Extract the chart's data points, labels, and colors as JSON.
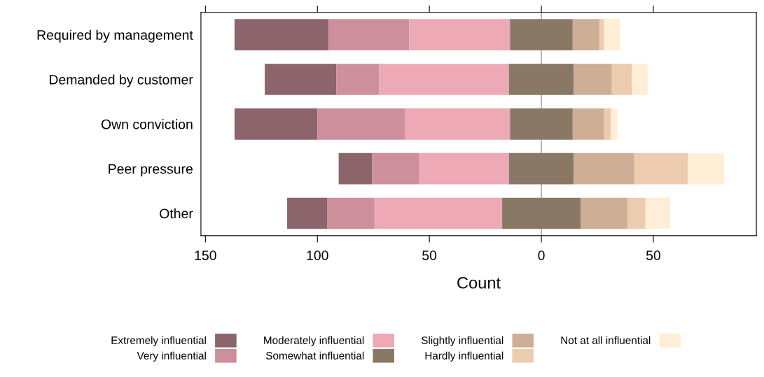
{
  "chart_data": {
    "type": "bar",
    "orientation": "horizontal",
    "xlabel": "Count",
    "categories": [
      "Required by management",
      "Demanded by customer",
      "Own conviction",
      "Peer pressure",
      "Other"
    ],
    "series": [
      {
        "name": "Extremely influential",
        "color": "#8b646c",
        "values": [
          42,
          32,
          37,
          15,
          18
        ],
        "base": [
          -137,
          -123.5,
          -137,
          -90.5,
          -113.5
        ]
      },
      {
        "name": "Very influential",
        "color": "#cd8f9b",
        "values": [
          36,
          19,
          39,
          21,
          21
        ],
        "base": [
          -95,
          -91.5,
          -100,
          -75.5,
          -95.5
        ]
      },
      {
        "name": "Moderately influential",
        "color": "#eda9b6",
        "values": [
          45,
          58,
          47,
          40,
          57
        ],
        "base": [
          -59,
          -72.5,
          -61,
          -54.5,
          -74.5
        ]
      },
      {
        "name": "Somewhat influential",
        "color": "#8a7866",
        "values": [
          28,
          29,
          28,
          29,
          35
        ],
        "base": [
          -14,
          -14.5,
          -14,
          -14.5,
          -17.5
        ]
      },
      {
        "name": "Slightly influential",
        "color": "#ceaf95",
        "values": [
          12,
          17,
          14,
          27,
          21
        ],
        "base": [
          14,
          14.5,
          14,
          14.5,
          17.5
        ]
      },
      {
        "name": "Hardly influential",
        "color": "#edcbae",
        "values": [
          2,
          9,
          3,
          24,
          8
        ],
        "base": [
          26,
          31.5,
          28,
          41.5,
          38.5
        ]
      },
      {
        "name": "Not at all influential",
        "color": "#feeed6",
        "values": [
          7,
          7,
          3,
          16,
          11
        ],
        "base": [
          28,
          40.5,
          31,
          65.5,
          46.5
        ]
      }
    ],
    "xlim": [
      -152,
      96
    ],
    "xticks": [
      {
        "value": -150,
        "label": "150"
      },
      {
        "value": -100,
        "label": "100"
      },
      {
        "value": -50,
        "label": "50"
      },
      0,
      50
    ],
    "ref_lines": [
      {
        "axis": "x",
        "value": 0,
        "color": "#aaaaaa"
      }
    ],
    "grid": false,
    "legend": "bottom"
  }
}
